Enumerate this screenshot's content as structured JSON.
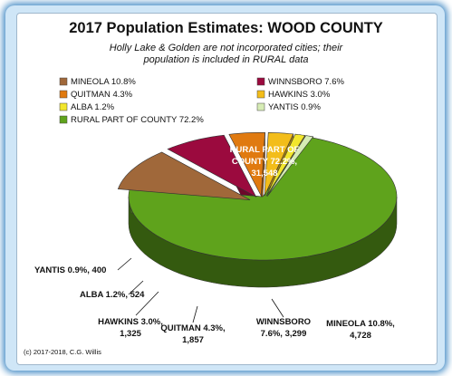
{
  "chart_data": {
    "type": "pie",
    "title": "2017 Population  Estimates:  WOOD COUNTY",
    "subtitle_lines": [
      "Holly Lake & Golden are not incorporated cities; their",
      "population  is included in RURAL data"
    ],
    "legend_placement": "top-left",
    "slices": [
      {
        "name": "RURAL PART OF COUNTY",
        "percent": 72.2,
        "value": 31548,
        "color": "#5fa31c",
        "legend": "RURAL PART OF COUNTY 72.2%",
        "label_lines": [
          "RURAL PART OF",
          "COUNTY 72.2%,",
          "31,548"
        ]
      },
      {
        "name": "MINEOLA",
        "percent": 10.8,
        "value": 4728,
        "color": "#a0683a",
        "legend": "MINEOLA 10.8%",
        "label_lines": [
          "MINEOLA 10.8%,",
          "4,728"
        ]
      },
      {
        "name": "WINNSBORO",
        "percent": 7.6,
        "value": 3299,
        "color": "#9b0a3e",
        "legend": "WINNSBORO 7.6%",
        "label_lines": [
          "WINNSBORO",
          "7.6%, 3,299"
        ]
      },
      {
        "name": "QUITMAN",
        "percent": 4.3,
        "value": 1857,
        "color": "#e07a10",
        "legend": "QUITMAN 4.3%",
        "label_lines": [
          "QUITMAN  4.3%,",
          "1,857"
        ]
      },
      {
        "name": "HAWKINS",
        "percent": 3.0,
        "value": 1325,
        "color": "#f3bd1a",
        "legend": "HAWKINS 3.0%",
        "label_lines": [
          "HAWKINS 3.0%,",
          "1,325"
        ]
      },
      {
        "name": "ALBA",
        "percent": 1.2,
        "value": 524,
        "color": "#f2e62c",
        "legend": "ALBA 1.2%",
        "label_lines": [
          "ALBA 1.2%, 524"
        ]
      },
      {
        "name": "YANTIS",
        "percent": 0.9,
        "value": 400,
        "color": "#d6ecb5",
        "legend": "YANTIS 0.9%",
        "label_lines": [
          "YANTIS 0.9%, 400"
        ]
      }
    ]
  },
  "footer": {
    "credit": "(c)  2017-2018, C.G. Willis"
  }
}
